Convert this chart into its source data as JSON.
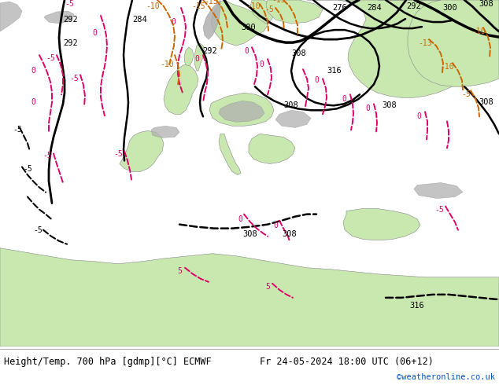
{
  "title_left": "Height/Temp. 700 hPa [gdmp][°C] ECMWF",
  "title_right": "Fr 24-05-2024 18:00 UTC (06+12)",
  "credit": "©weatheronline.co.uk",
  "land_color": "#c8e8b0",
  "sea_color": "#d0d0d0",
  "mountain_color": "#b0b0b0",
  "fig_width": 6.34,
  "fig_height": 4.9,
  "dpi": 100,
  "bottom_bar_color": "white",
  "black": "#000000",
  "pink": "#e0006a",
  "orange": "#cc6600",
  "blue": "#0055cc"
}
